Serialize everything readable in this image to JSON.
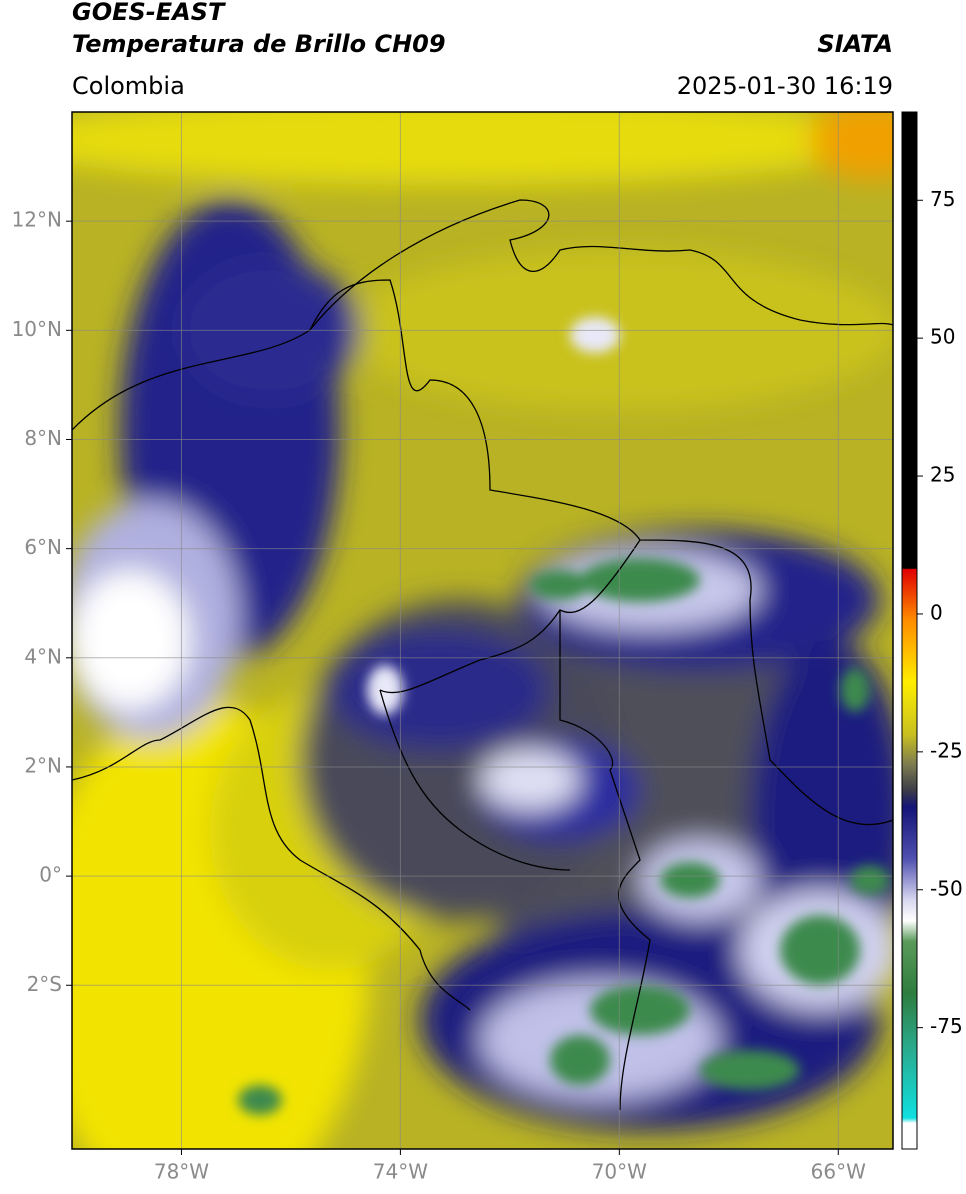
{
  "header": {
    "title": "GOES-EAST",
    "subtitle": "Temperatura de Brillo CH09",
    "source": "SIATA",
    "region": "Colombia",
    "datetime": "2025-01-30 16:19"
  },
  "map": {
    "xlim": [
      -80,
      -65
    ],
    "ylim": [
      -5,
      14
    ],
    "xticks": [
      {
        "value": -78,
        "label": "78°W"
      },
      {
        "value": -74,
        "label": "74°W"
      },
      {
        "value": -70,
        "label": "70°W"
      },
      {
        "value": -66,
        "label": "66°W"
      }
    ],
    "yticks": [
      {
        "value": 12,
        "label": "12°N"
      },
      {
        "value": 10,
        "label": "10°N"
      },
      {
        "value": 8,
        "label": "8°N"
      },
      {
        "value": 6,
        "label": "6°N"
      },
      {
        "value": 4,
        "label": "4°N"
      },
      {
        "value": 2,
        "label": "2°N"
      },
      {
        "value": 0,
        "label": "0°"
      },
      {
        "value": -2,
        "label": "2°S"
      }
    ],
    "grid": true
  },
  "colorbar": {
    "lim": [
      -97,
      91
    ],
    "ticks": [
      75,
      50,
      25,
      0,
      -25,
      -50,
      -75
    ]
  }
}
